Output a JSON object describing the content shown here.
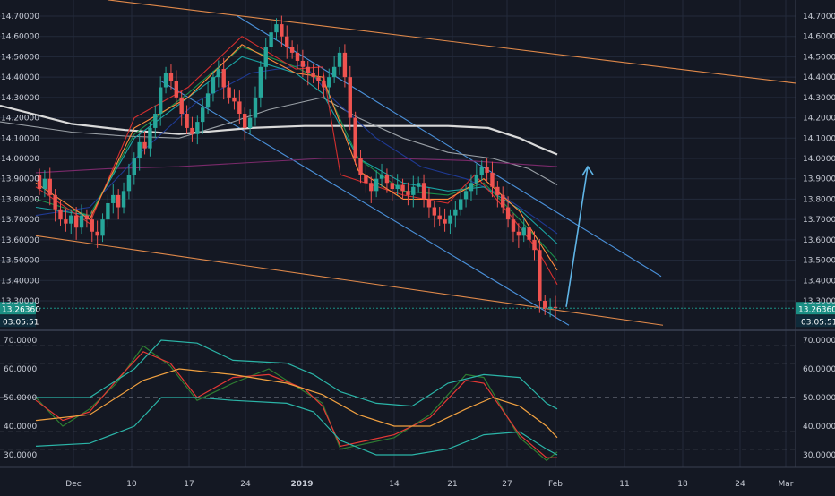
{
  "colors": {
    "background": "#141823",
    "grid": "#232a3b",
    "axis_text": "#c8ccd6",
    "candle_up": "#26a69a",
    "candle_down": "#ef5350",
    "channel_orange": "#e0894a",
    "channel_blue": "#4a90d9",
    "arrow": "#5fb4e6",
    "price_tag": "#1b8f84",
    "ma_white": "#d9d9d9",
    "ma_grey": "#9aa0a6",
    "ma_purple": "#7b2a6b",
    "ma_orange": "#ff8a3d",
    "ma_green": "#1b8f4a",
    "ma_cyan": "#1aa3a3",
    "ma_navy": "#1f3a93",
    "ma_red": "#d32f2f",
    "rsi_green": "#2e7d32",
    "rsi_red": "#e53935",
    "rsi_orange": "#f0a040",
    "rsi_band": "#2bb5a8"
  },
  "chart_data": [
    {
      "type": "candlestick",
      "pane": "price",
      "x_tick_labels": [
        "Dec",
        "10",
        "17",
        "24",
        "2019",
        "14",
        "21",
        "27",
        "Feb",
        "11",
        "18",
        "24",
        "Mar"
      ],
      "y_tick_labels": [
        "14.70000",
        "14.60000",
        "14.50000",
        "14.40000",
        "14.30000",
        "14.20000",
        "14.10000",
        "14.00000",
        "13.90000",
        "13.80000",
        "13.70000",
        "13.60000",
        "13.50000",
        "13.40000",
        "13.30000"
      ],
      "ylim": [
        13.2,
        14.75
      ],
      "current_price_label": "13.26360",
      "countdown_label": "03:05:51",
      "current_price": 13.2636,
      "close_series": [
        13.85,
        13.9,
        13.82,
        13.75,
        13.7,
        13.68,
        13.72,
        13.66,
        13.72,
        13.7,
        13.64,
        13.62,
        13.7,
        13.78,
        13.82,
        13.76,
        13.84,
        13.92,
        14.0,
        14.08,
        14.05,
        14.15,
        14.22,
        14.35,
        14.42,
        14.38,
        14.3,
        14.22,
        14.15,
        14.12,
        14.18,
        14.25,
        14.32,
        14.4,
        14.44,
        14.35,
        14.3,
        14.28,
        14.22,
        14.15,
        14.2,
        14.3,
        14.45,
        14.55,
        14.62,
        14.66,
        14.6,
        14.55,
        14.52,
        14.48,
        14.45,
        14.42,
        14.4,
        14.38,
        14.35,
        14.4,
        14.45,
        14.52,
        14.4,
        14.2,
        14.0,
        13.92,
        13.88,
        13.84,
        13.9,
        13.92,
        13.88,
        13.85,
        13.87,
        13.84,
        13.82,
        13.86,
        13.88,
        13.8,
        13.76,
        13.72,
        13.7,
        13.68,
        13.72,
        13.75,
        13.8,
        13.84,
        13.88,
        13.92,
        13.96,
        13.93,
        13.86,
        13.82,
        13.76,
        13.7,
        13.64,
        13.62,
        13.66,
        13.6,
        13.55,
        13.3,
        13.26,
        13.27,
        13.264
      ],
      "moving_averages": [
        {
          "color_key": "ma_white",
          "points": [
            [
              0,
              14.26
            ],
            [
              80,
              14.17
            ],
            [
              140,
              14.14
            ],
            [
              200,
              14.12
            ],
            [
              280,
              14.15
            ],
            [
              340,
              14.16
            ],
            [
              400,
              14.16
            ],
            [
              460,
              14.16
            ],
            [
              500,
              14.16
            ],
            [
              545,
              14.15
            ],
            [
              580,
              14.1
            ],
            [
              600,
              14.06
            ],
            [
              622,
              14.02
            ]
          ]
        },
        {
          "color_key": "ma_grey",
          "points": [
            [
              0,
              14.18
            ],
            [
              80,
              14.13
            ],
            [
              140,
              14.11
            ],
            [
              200,
              14.1
            ],
            [
              260,
              14.18
            ],
            [
              300,
              14.24
            ],
            [
              340,
              14.28
            ],
            [
              360,
              14.3
            ],
            [
              400,
              14.2
            ],
            [
              450,
              14.1
            ],
            [
              500,
              14.03
            ],
            [
              550,
              14.0
            ],
            [
              590,
              13.95
            ],
            [
              622,
              13.87
            ]
          ]
        },
        {
          "color_key": "ma_purple",
          "points": [
            [
              40,
              13.93
            ],
            [
              120,
              13.95
            ],
            [
              200,
              13.96
            ],
            [
              280,
              13.98
            ],
            [
              360,
              14.0
            ],
            [
              440,
              14.0
            ],
            [
              520,
              13.99
            ],
            [
              622,
              13.96
            ]
          ]
        },
        {
          "color_key": "ma_navy",
          "points": [
            [
              40,
              13.72
            ],
            [
              100,
              13.76
            ],
            [
              160,
              14.04
            ],
            [
              220,
              14.28
            ],
            [
              280,
              14.42
            ],
            [
              340,
              14.46
            ],
            [
              370,
              14.3
            ],
            [
              420,
              14.1
            ],
            [
              470,
              13.96
            ],
            [
              520,
              13.9
            ],
            [
              560,
              13.82
            ],
            [
              600,
              13.7
            ],
            [
              622,
              13.63
            ]
          ]
        },
        {
          "color_key": "ma_cyan",
          "points": [
            [
              40,
              13.76
            ],
            [
              100,
              13.72
            ],
            [
              150,
              14.1
            ],
            [
              210,
              14.3
            ],
            [
              270,
              14.5
            ],
            [
              330,
              14.42
            ],
            [
              360,
              14.32
            ],
            [
              400,
              14.0
            ],
            [
              450,
              13.88
            ],
            [
              500,
              13.84
            ],
            [
              540,
              13.86
            ],
            [
              580,
              13.75
            ],
            [
              622,
              13.58
            ]
          ]
        },
        {
          "color_key": "ma_green",
          "points": [
            [
              40,
              13.8
            ],
            [
              100,
              13.72
            ],
            [
              150,
              14.12
            ],
            [
              210,
              14.32
            ],
            [
              270,
              14.55
            ],
            [
              330,
              14.45
            ],
            [
              360,
              14.38
            ],
            [
              400,
              14.0
            ],
            [
              450,
              13.84
            ],
            [
              500,
              13.82
            ],
            [
              540,
              13.88
            ],
            [
              580,
              13.7
            ],
            [
              622,
              13.5
            ]
          ]
        },
        {
          "color_key": "ma_red",
          "points": [
            [
              40,
              13.86
            ],
            [
              100,
              13.68
            ],
            [
              150,
              14.2
            ],
            [
              210,
              14.35
            ],
            [
              270,
              14.6
            ],
            [
              330,
              14.44
            ],
            [
              360,
              14.45
            ],
            [
              380,
              13.92
            ],
            [
              450,
              13.82
            ],
            [
              500,
              13.78
            ],
            [
              530,
              13.92
            ],
            [
              570,
              13.72
            ],
            [
              600,
              13.55
            ],
            [
              622,
              13.38
            ]
          ]
        },
        {
          "color_key": "ma_orange",
          "points": [
            [
              40,
              13.88
            ],
            [
              100,
              13.7
            ],
            [
              150,
              14.15
            ],
            [
              210,
              14.3
            ],
            [
              270,
              14.56
            ],
            [
              330,
              14.42
            ],
            [
              360,
              14.4
            ],
            [
              400,
              13.94
            ],
            [
              450,
              13.8
            ],
            [
              500,
              13.8
            ],
            [
              540,
              13.9
            ],
            [
              580,
              13.74
            ],
            [
              622,
              13.45
            ]
          ]
        }
      ],
      "trendlines": [
        {
          "color_key": "channel_orange",
          "from": [
            120,
            14.78
          ],
          "to": [
            888,
            14.37
          ]
        },
        {
          "color_key": "channel_orange",
          "from": [
            40,
            13.62
          ],
          "to": [
            740,
            13.18
          ]
        },
        {
          "color_key": "channel_blue",
          "from": [
            265,
            14.7
          ],
          "to": [
            738,
            13.42
          ]
        },
        {
          "color_key": "channel_blue",
          "from": [
            180,
            14.38
          ],
          "to": [
            635,
            13.18
          ]
        }
      ],
      "projection_arrow": {
        "color_key": "arrow",
        "from": [
          632,
          13.27
        ],
        "to": [
          656,
          13.96
        ]
      }
    },
    {
      "type": "line",
      "pane": "indicator",
      "y_tick_labels": [
        "70.0000",
        "60.0000",
        "50.0000",
        "40.0000",
        "30.0000"
      ],
      "ylim": [
        25,
        72
      ],
      "dashed_levels": [
        68,
        62,
        50,
        38,
        32
      ],
      "series": [
        {
          "color_key": "rsi_green",
          "points": [
            [
              40,
              50
            ],
            [
              70,
              40
            ],
            [
              100,
              46
            ],
            [
              130,
              55
            ],
            [
              160,
              68
            ],
            [
              190,
              61
            ],
            [
              220,
              49
            ],
            [
              260,
              55
            ],
            [
              300,
              60
            ],
            [
              340,
              52
            ],
            [
              360,
              48
            ],
            [
              380,
              32
            ],
            [
              410,
              34
            ],
            [
              440,
              36
            ],
            [
              480,
              44
            ],
            [
              520,
              58
            ],
            [
              540,
              57
            ],
            [
              580,
              36
            ],
            [
              610,
              28
            ],
            [
              622,
              31
            ]
          ]
        },
        {
          "color_key": "rsi_red",
          "points": [
            [
              40,
              49
            ],
            [
              70,
              42
            ],
            [
              100,
              45
            ],
            [
              130,
              56
            ],
            [
              160,
              66
            ],
            [
              190,
              62
            ],
            [
              220,
              50
            ],
            [
              260,
              57
            ],
            [
              300,
              58
            ],
            [
              340,
              53
            ],
            [
              360,
              47
            ],
            [
              380,
              33
            ],
            [
              410,
              35
            ],
            [
              440,
              37
            ],
            [
              480,
              43
            ],
            [
              520,
              56
            ],
            [
              540,
              55
            ],
            [
              580,
              37
            ],
            [
              610,
              29
            ],
            [
              622,
              29
            ]
          ]
        },
        {
          "color_key": "rsi_orange",
          "points": [
            [
              40,
              42
            ],
            [
              100,
              44
            ],
            [
              160,
              56
            ],
            [
              200,
              60
            ],
            [
              260,
              58
            ],
            [
              320,
              55
            ],
            [
              360,
              51
            ],
            [
              400,
              44
            ],
            [
              440,
              40
            ],
            [
              480,
              40
            ],
            [
              520,
              46
            ],
            [
              550,
              50
            ],
            [
              580,
              47
            ],
            [
              610,
              40
            ],
            [
              622,
              36
            ]
          ]
        },
        {
          "color_key": "rsi_band",
          "points": [
            [
              40,
              50
            ],
            [
              100,
              50
            ],
            [
              150,
              60
            ],
            [
              180,
              70
            ],
            [
              220,
              69
            ],
            [
              260,
              63
            ],
            [
              320,
              62
            ],
            [
              350,
              58
            ],
            [
              380,
              52
            ],
            [
              420,
              48
            ],
            [
              460,
              47
            ],
            [
              500,
              55
            ],
            [
              540,
              58
            ],
            [
              580,
              57
            ],
            [
              610,
              48
            ],
            [
              622,
              46
            ]
          ]
        },
        {
          "color_key": "rsi_band",
          "points": [
            [
              40,
              33
            ],
            [
              100,
              34
            ],
            [
              150,
              40
            ],
            [
              180,
              50
            ],
            [
              220,
              50
            ],
            [
              260,
              49
            ],
            [
              320,
              48
            ],
            [
              350,
              45
            ],
            [
              380,
              35
            ],
            [
              420,
              30
            ],
            [
              460,
              30
            ],
            [
              500,
              32
            ],
            [
              540,
              37
            ],
            [
              580,
              38
            ],
            [
              610,
              32
            ],
            [
              622,
              30
            ]
          ]
        }
      ]
    }
  ]
}
